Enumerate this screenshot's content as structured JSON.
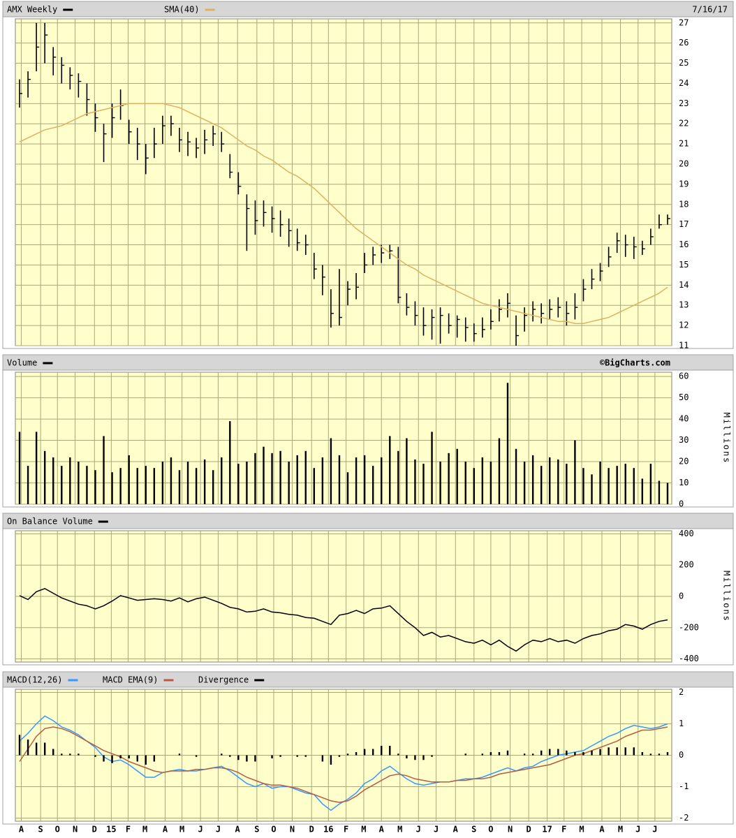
{
  "chart_data": [
    {
      "type": "ohlc",
      "date_label": "7/16/17",
      "grid": true,
      "ylim": [
        11,
        27.2
      ],
      "yticks": [
        11,
        12,
        13,
        14,
        15,
        16,
        17,
        18,
        19,
        20,
        21,
        22,
        23,
        24,
        25,
        26,
        27
      ],
      "series": [
        {
          "name": "AMX Weekly",
          "color": "#000000",
          "style": "ohlc",
          "high": [
            24.2,
            24.6,
            27.0,
            27.0,
            25.8,
            25.3,
            24.8,
            24.5,
            24.0,
            23.0,
            22.0,
            23.0,
            23.7,
            22.2,
            21.8,
            21.0,
            21.8,
            22.4,
            22.4,
            21.8,
            21.6,
            21.3,
            21.7,
            21.9,
            21.6,
            20.5,
            19.6,
            18.5,
            18.2,
            18.2,
            17.9,
            17.7,
            17.3,
            16.8,
            16.5,
            15.6,
            15.0,
            13.8,
            14.8,
            14.2,
            14.6,
            15.6,
            15.9,
            16.0,
            16.0,
            15.9,
            13.6,
            13.2,
            12.9,
            12.8,
            12.9,
            12.6,
            12.5,
            12.4,
            12.1,
            12.4,
            12.8,
            13.3,
            13.6,
            12.5,
            12.9,
            13.2,
            13.1,
            13.3,
            13.4,
            13.2,
            13.6,
            14.3,
            14.8,
            15.1,
            15.9,
            16.6,
            16.5,
            16.4,
            16.2,
            16.8,
            17.5,
            17.5
          ],
          "low": [
            22.8,
            23.3,
            24.6,
            25.0,
            24.4,
            24.0,
            23.7,
            23.3,
            22.4,
            21.6,
            20.1,
            21.3,
            22.2,
            21.0,
            20.2,
            19.5,
            20.3,
            21.0,
            21.4,
            20.6,
            20.4,
            20.3,
            20.5,
            20.9,
            20.6,
            19.3,
            18.5,
            15.7,
            16.5,
            16.9,
            16.6,
            16.4,
            15.9,
            15.7,
            15.5,
            14.3,
            13.5,
            11.9,
            12.0,
            13.0,
            13.3,
            14.6,
            15.0,
            15.1,
            15.3,
            13.1,
            12.5,
            12.0,
            11.5,
            11.3,
            11.1,
            11.6,
            11.4,
            11.2,
            11.2,
            11.4,
            11.8,
            12.2,
            12.4,
            11.0,
            11.7,
            12.2,
            12.1,
            12.3,
            12.4,
            12.0,
            12.3,
            13.2,
            13.8,
            14.2,
            14.9,
            15.6,
            15.4,
            15.3,
            15.5,
            16.0,
            16.8,
            17.0
          ],
          "close": [
            23.5,
            24.2,
            25.8,
            26.4,
            25.3,
            24.9,
            24.4,
            24.1,
            23.2,
            22.3,
            21.5,
            22.3,
            22.9,
            21.6,
            21.0,
            20.3,
            21.0,
            21.9,
            22.0,
            21.2,
            21.1,
            20.8,
            21.2,
            21.5,
            21.0,
            19.6,
            18.9,
            17.8,
            17.2,
            17.6,
            17.3,
            17.0,
            16.7,
            16.1,
            16.0,
            14.8,
            14.4,
            12.6,
            12.4,
            13.8,
            13.9,
            15.0,
            15.5,
            15.6,
            15.7,
            13.4,
            12.9,
            12.5,
            12.0,
            12.4,
            12.5,
            12.0,
            12.3,
            11.9,
            11.6,
            11.8,
            12.2,
            12.8,
            13.1,
            11.5,
            12.5,
            12.8,
            12.6,
            12.8,
            12.9,
            12.6,
            12.9,
            13.8,
            14.3,
            14.7,
            15.4,
            16.2,
            16.0,
            15.9,
            15.8,
            16.4,
            17.0,
            17.3
          ]
        },
        {
          "name": "SMA(40)",
          "color": "#e0b060",
          "style": "line",
          "values": [
            21.1,
            21.3,
            21.5,
            21.7,
            21.8,
            21.9,
            22.1,
            22.3,
            22.5,
            22.6,
            22.7,
            22.8,
            22.9,
            23.0,
            23.0,
            23.0,
            23.0,
            23.0,
            22.9,
            22.8,
            22.6,
            22.4,
            22.2,
            22.0,
            21.8,
            21.5,
            21.2,
            20.9,
            20.7,
            20.4,
            20.2,
            19.9,
            19.6,
            19.4,
            19.1,
            18.8,
            18.4,
            18.0,
            17.6,
            17.2,
            16.8,
            16.5,
            16.2,
            15.9,
            15.6,
            15.3,
            15.0,
            14.8,
            14.5,
            14.3,
            14.1,
            13.9,
            13.7,
            13.5,
            13.3,
            13.1,
            13.0,
            12.9,
            12.8,
            12.7,
            12.6,
            12.5,
            12.4,
            12.3,
            12.2,
            12.2,
            12.1,
            12.1,
            12.2,
            12.3,
            12.4,
            12.6,
            12.8,
            13.0,
            13.2,
            13.4,
            13.6,
            13.9
          ]
        }
      ]
    },
    {
      "type": "bar",
      "credit": "©BigCharts.com",
      "y_label": "Millions",
      "grid": true,
      "ylim": [
        0,
        62
      ],
      "yticks": [
        0,
        10,
        20,
        30,
        40,
        50,
        60
      ],
      "series": [
        {
          "name": "Volume",
          "color": "#000000",
          "style": "bar",
          "values": [
            34,
            18,
            34,
            25,
            22,
            18,
            22,
            20,
            18,
            16,
            32,
            15,
            17,
            23,
            17,
            18,
            17,
            20,
            22,
            16,
            20,
            17,
            21,
            16,
            22,
            39,
            19,
            20,
            24,
            27,
            24,
            25,
            20,
            23,
            25,
            17,
            22,
            31,
            23,
            15,
            22,
            23,
            18,
            22,
            32,
            25,
            31,
            21,
            19,
            34,
            20,
            24,
            26,
            20,
            17,
            22,
            20,
            31,
            57,
            26,
            20,
            23,
            18,
            22,
            21,
            19,
            30,
            17,
            14,
            20,
            17,
            18,
            19,
            17,
            12,
            19,
            11,
            10
          ]
        }
      ]
    },
    {
      "type": "line",
      "y_label": "Millions",
      "grid": true,
      "ylim": [
        -420,
        420
      ],
      "yticks": [
        -400,
        -200,
        0,
        200,
        400
      ],
      "series": [
        {
          "name": "On Balance Volume",
          "color": "#000000",
          "style": "line",
          "values": [
            5,
            -20,
            30,
            50,
            20,
            -10,
            -30,
            -50,
            -60,
            -80,
            -60,
            -30,
            5,
            -10,
            -25,
            -20,
            -15,
            -20,
            -30,
            -10,
            -35,
            -15,
            -5,
            -25,
            -45,
            -70,
            -80,
            -100,
            -95,
            -80,
            -100,
            -105,
            -115,
            -120,
            -135,
            -140,
            -160,
            -180,
            -120,
            -110,
            -90,
            -110,
            -80,
            -75,
            -60,
            -110,
            -160,
            -200,
            -250,
            -230,
            -260,
            -250,
            -270,
            -290,
            -300,
            -280,
            -310,
            -280,
            -320,
            -350,
            -310,
            -280,
            -290,
            -270,
            -290,
            -280,
            -300,
            -270,
            -250,
            -240,
            -220,
            -210,
            -180,
            -190,
            -210,
            -180,
            -160,
            -150
          ]
        }
      ]
    },
    {
      "type": "macd",
      "grid": true,
      "ylim": [
        -2.1,
        2.1
      ],
      "yticks": [
        -2,
        -1,
        0,
        1,
        2
      ],
      "xlim": [
        -0.5,
        77.5
      ],
      "xticks": [
        {
          "value": 0.2,
          "label": "A"
        },
        {
          "value": 2.5,
          "label": "S"
        },
        {
          "value": 4.5,
          "label": "O"
        },
        {
          "value": 6.6,
          "label": "N"
        },
        {
          "value": 8.9,
          "label": "D"
        },
        {
          "value": 10.9,
          "label": "15"
        },
        {
          "value": 12.9,
          "label": "F"
        },
        {
          "value": 14.9,
          "label": "M"
        },
        {
          "value": 17.3,
          "label": "A"
        },
        {
          "value": 19.3,
          "label": "M"
        },
        {
          "value": 21.5,
          "label": "J"
        },
        {
          "value": 23.6,
          "label": "J"
        },
        {
          "value": 25.9,
          "label": "A"
        },
        {
          "value": 28.2,
          "label": "S"
        },
        {
          "value": 30.2,
          "label": "O"
        },
        {
          "value": 32.4,
          "label": "N"
        },
        {
          "value": 34.7,
          "label": "D"
        },
        {
          "value": 36.7,
          "label": "16"
        },
        {
          "value": 38.8,
          "label": "F"
        },
        {
          "value": 40.9,
          "label": "M"
        },
        {
          "value": 43.0,
          "label": "A"
        },
        {
          "value": 45.2,
          "label": "M"
        },
        {
          "value": 47.4,
          "label": "J"
        },
        {
          "value": 49.5,
          "label": "J"
        },
        {
          "value": 51.8,
          "label": "A"
        },
        {
          "value": 54.0,
          "label": "S"
        },
        {
          "value": 56.0,
          "label": "O"
        },
        {
          "value": 58.3,
          "label": "N"
        },
        {
          "value": 60.5,
          "label": "D"
        },
        {
          "value": 62.7,
          "label": "17"
        },
        {
          "value": 64.7,
          "label": "F"
        },
        {
          "value": 66.8,
          "label": "M"
        },
        {
          "value": 69.2,
          "label": "A"
        },
        {
          "value": 71.4,
          "label": "M"
        },
        {
          "value": 73.5,
          "label": "J"
        },
        {
          "value": 75.5,
          "label": "J"
        }
      ],
      "series": [
        {
          "name": "MACD(12,26)",
          "color": "#3399ff",
          "style": "line",
          "values": [
            0.45,
            0.7,
            1.0,
            1.25,
            1.1,
            0.9,
            0.8,
            0.65,
            0.45,
            0.25,
            -0.05,
            -0.2,
            -0.15,
            -0.3,
            -0.5,
            -0.7,
            -0.7,
            -0.55,
            -0.5,
            -0.45,
            -0.5,
            -0.5,
            -0.45,
            -0.4,
            -0.35,
            -0.5,
            -0.7,
            -0.9,
            -1.0,
            -0.9,
            -1.05,
            -1.0,
            -1.0,
            -1.1,
            -1.2,
            -1.25,
            -1.55,
            -1.75,
            -1.55,
            -1.4,
            -1.2,
            -0.9,
            -0.75,
            -0.5,
            -0.35,
            -0.55,
            -0.75,
            -0.9,
            -0.95,
            -0.9,
            -0.85,
            -0.85,
            -0.8,
            -0.75,
            -0.75,
            -0.7,
            -0.6,
            -0.5,
            -0.4,
            -0.5,
            -0.4,
            -0.35,
            -0.2,
            -0.1,
            0.0,
            0.05,
            0.1,
            0.15,
            0.3,
            0.45,
            0.6,
            0.7,
            0.85,
            0.95,
            0.9,
            0.85,
            0.9,
            1.0
          ]
        },
        {
          "name": "MACD EMA(9)",
          "color": "#b85a40",
          "style": "line",
          "values": [
            -0.2,
            0.2,
            0.6,
            0.85,
            0.9,
            0.85,
            0.75,
            0.6,
            0.45,
            0.3,
            0.15,
            0.05,
            -0.05,
            -0.2,
            -0.3,
            -0.4,
            -0.5,
            -0.55,
            -0.5,
            -0.5,
            -0.5,
            -0.45,
            -0.45,
            -0.4,
            -0.4,
            -0.45,
            -0.55,
            -0.7,
            -0.8,
            -0.9,
            -0.95,
            -0.95,
            -1.0,
            -1.05,
            -1.15,
            -1.25,
            -1.35,
            -1.45,
            -1.5,
            -1.45,
            -1.3,
            -1.1,
            -0.95,
            -0.8,
            -0.65,
            -0.6,
            -0.65,
            -0.75,
            -0.8,
            -0.85,
            -0.85,
            -0.85,
            -0.8,
            -0.8,
            -0.75,
            -0.75,
            -0.7,
            -0.6,
            -0.55,
            -0.5,
            -0.45,
            -0.4,
            -0.35,
            -0.3,
            -0.2,
            -0.1,
            0.0,
            0.05,
            0.15,
            0.25,
            0.35,
            0.45,
            0.6,
            0.7,
            0.8,
            0.8,
            0.85,
            0.9
          ]
        },
        {
          "name": "Divergence",
          "color": "#000000",
          "style": "bar",
          "values": [
            0.65,
            0.5,
            0.4,
            0.4,
            0.2,
            0.05,
            0.05,
            0.05,
            0,
            -0.05,
            -0.2,
            -0.25,
            -0.1,
            -0.1,
            -0.2,
            -0.3,
            -0.2,
            0,
            0,
            0.05,
            0,
            -0.05,
            0,
            0,
            0.05,
            -0.05,
            -0.15,
            -0.2,
            -0.2,
            0,
            -0.1,
            -0.05,
            0,
            -0.05,
            -0.05,
            0,
            -0.2,
            -0.3,
            -0.05,
            0.05,
            0.1,
            0.2,
            0.2,
            0.3,
            0.3,
            0.05,
            -0.1,
            -0.15,
            -0.15,
            -0.05,
            0,
            0,
            0,
            0.05,
            0,
            0.05,
            0.1,
            0.1,
            0.15,
            0,
            0.05,
            0.05,
            0.15,
            0.2,
            0.2,
            0.15,
            0.1,
            0.1,
            0.15,
            0.2,
            0.25,
            0.25,
            0.25,
            0.25,
            0.1,
            0.05,
            0.05,
            0.1
          ]
        }
      ]
    }
  ]
}
